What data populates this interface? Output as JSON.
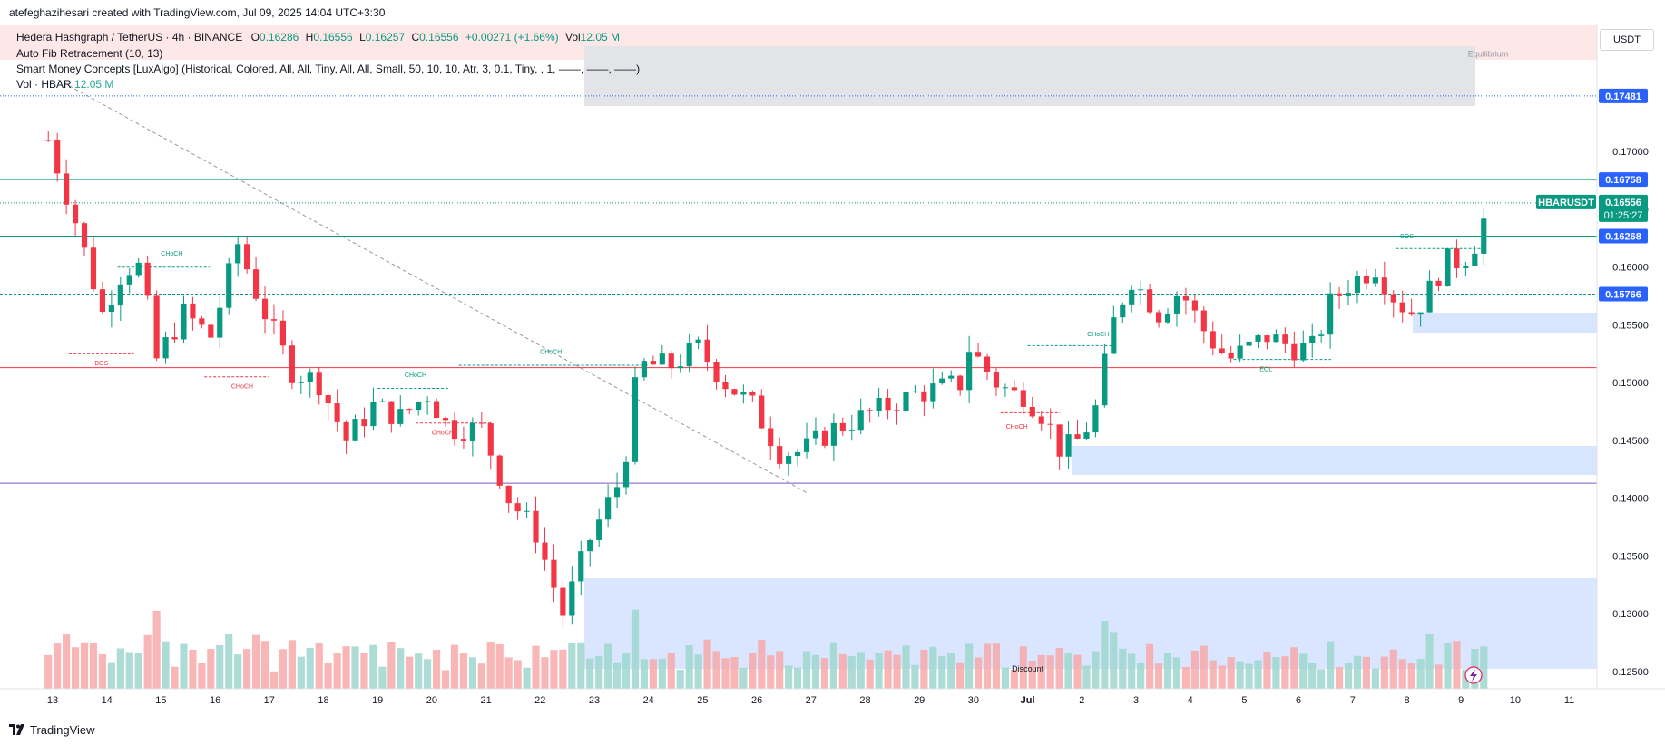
{
  "header": {
    "creator": "atefeghazihesari created with TradingView.com, Jul 09, 2025 14:04 UTC+3:30"
  },
  "legend": {
    "symbol": "Hedera Hashgraph / TetherUS · 4h · BINANCE",
    "o_label": "O",
    "o_value": "0.16286",
    "h_label": "H",
    "h_value": "0.16556",
    "l_label": "L",
    "l_value": "0.16257",
    "c_label": "C",
    "c_value": "0.16556",
    "change": "+0.00271 (+1.66%)",
    "vol_label": "Vol",
    "vol_value": "12.05 M",
    "fib": "Auto Fib Retracement (10, 13)",
    "smc": "Smart Money Concepts [LuxAlgo] (Historical, Colored, All, All, Tiny, All, All, Small, 50, 10, 10, Atr, 3, 0.1, Tiny, , 1, ——, ——, ——)",
    "vol_name": "Vol · HBAR",
    "vol_indicator_value": "12.05 M"
  },
  "currency": "USDT",
  "brand": "TradingView",
  "colors": {
    "up": "#089981",
    "down": "#f23645",
    "vol_up": "#9ed6ce",
    "vol_down": "#f7a9a9",
    "fib_green": "#089981",
    "fib_red": "#f23645",
    "demand_zone": "#d6e4ff",
    "label_blue": "#2962ff",
    "label_green": "#089981"
  },
  "chart_data": {
    "type": "candlestick",
    "symbol": "HBARUSDT",
    "interval": "4h",
    "y_range": [
      0.1235,
      0.181
    ],
    "y_ticks": [
      "0.17000",
      "0.16500",
      "0.16000",
      "0.15500",
      "0.15000",
      "0.14500",
      "0.14000",
      "0.13500",
      "0.13000",
      "0.12500"
    ],
    "x_ticks": [
      {
        "label": "13",
        "day": 0
      },
      {
        "label": "14",
        "day": 1
      },
      {
        "label": "15",
        "day": 2
      },
      {
        "label": "16",
        "day": 3
      },
      {
        "label": "17",
        "day": 4
      },
      {
        "label": "18",
        "day": 5
      },
      {
        "label": "19",
        "day": 6
      },
      {
        "label": "20",
        "day": 7
      },
      {
        "label": "21",
        "day": 8
      },
      {
        "label": "22",
        "day": 9
      },
      {
        "label": "23",
        "day": 10
      },
      {
        "label": "24",
        "day": 11
      },
      {
        "label": "25",
        "day": 12
      },
      {
        "label": "26",
        "day": 13
      },
      {
        "label": "27",
        "day": 14
      },
      {
        "label": "28",
        "day": 15
      },
      {
        "label": "29",
        "day": 16
      },
      {
        "label": "30",
        "day": 17
      },
      {
        "label": "Jul",
        "day": 18
      },
      {
        "label": "2",
        "day": 19
      },
      {
        "label": "3",
        "day": 20
      },
      {
        "label": "4",
        "day": 21
      },
      {
        "label": "5",
        "day": 22
      },
      {
        "label": "6",
        "day": 23
      },
      {
        "label": "7",
        "day": 24
      },
      {
        "label": "8",
        "day": 25
      },
      {
        "label": "9",
        "day": 26
      },
      {
        "label": "10",
        "day": 27
      },
      {
        "label": "11",
        "day": 28
      }
    ],
    "waypoints": [
      [
        0,
        0.171
      ],
      [
        0.5,
        0.164
      ],
      [
        1.0,
        0.156
      ],
      [
        1.4,
        0.16
      ],
      [
        1.7,
        0.16
      ],
      [
        2.0,
        0.152
      ],
      [
        2.5,
        0.156
      ],
      [
        3.0,
        0.154
      ],
      [
        3.5,
        0.162
      ],
      [
        3.9,
        0.157
      ],
      [
        4.5,
        0.151
      ],
      [
        5.0,
        0.15
      ],
      [
        5.5,
        0.145
      ],
      [
        6.0,
        0.148
      ],
      [
        6.5,
        0.147
      ],
      [
        7.0,
        0.149
      ],
      [
        7.4,
        0.146
      ],
      [
        8.0,
        0.146
      ],
      [
        8.5,
        0.14
      ],
      [
        9.0,
        0.137
      ],
      [
        9.5,
        0.13
      ],
      [
        10.0,
        0.1365
      ],
      [
        10.6,
        0.142
      ],
      [
        10.9,
        0.1515
      ],
      [
        11.5,
        0.1515
      ],
      [
        12.0,
        0.153
      ],
      [
        12.5,
        0.15
      ],
      [
        13.0,
        0.148
      ],
      [
        13.5,
        0.144
      ],
      [
        13.9,
        0.144
      ],
      [
        14.5,
        0.146
      ],
      [
        15.0,
        0.147
      ],
      [
        15.5,
        0.148
      ],
      [
        16.0,
        0.149
      ],
      [
        16.9,
        0.15
      ],
      [
        17.0,
        0.153
      ],
      [
        17.5,
        0.15
      ],
      [
        17.8,
        0.149
      ],
      [
        18.0,
        0.149
      ],
      [
        18.4,
        0.147
      ],
      [
        18.7,
        0.144
      ],
      [
        19.0,
        0.145
      ],
      [
        19.3,
        0.147
      ],
      [
        19.7,
        0.156
      ],
      [
        20.0,
        0.159
      ],
      [
        20.5,
        0.156
      ],
      [
        20.9,
        0.158
      ],
      [
        21.4,
        0.154
      ],
      [
        21.8,
        0.152
      ],
      [
        22.5,
        0.154
      ],
      [
        23.0,
        0.153
      ],
      [
        23.4,
        0.153
      ],
      [
        23.6,
        0.1565
      ],
      [
        24.0,
        0.1585
      ],
      [
        24.5,
        0.16
      ],
      [
        24.9,
        0.157
      ],
      [
        25.2,
        0.156
      ],
      [
        25.5,
        0.158
      ],
      [
        25.8,
        0.1605
      ],
      [
        26.1,
        0.1605
      ],
      [
        26.4,
        0.1625
      ],
      [
        26.6,
        0.1656
      ]
    ],
    "last_price": 0.16556,
    "last_price_countdown": "01:25:27",
    "price_label_symbol": "HBARUSDT",
    "fib_levels": [
      {
        "price": 0.17481,
        "label": "0.17481",
        "style": "dotted",
        "color": "#2962ff"
      },
      {
        "price": 0.16758,
        "label": "0.16758",
        "style": "solid",
        "color": "#089981"
      },
      {
        "price": 0.16268,
        "label": "0.16268",
        "style": "solid",
        "color": "#089981"
      },
      {
        "price": 0.15766,
        "label": "0.15766",
        "style": "dashed",
        "color": "#089981"
      },
      {
        "price": 0.1513,
        "label": "",
        "style": "solid",
        "color": "#f23645"
      },
      {
        "price": 0.1413,
        "label": "",
        "style": "solid",
        "color": "#7e57c2"
      }
    ],
    "annotations": [
      {
        "text": "Equilibrium",
        "day": 26.5,
        "price": 0.1782,
        "color": "#9598a1"
      },
      {
        "text": "Discount",
        "day": 18.0,
        "price": 0.125,
        "color": "#131722"
      },
      {
        "text": "CHoCH",
        "day": 2.2,
        "price": 0.161,
        "color": "#089981"
      },
      {
        "text": "BOS",
        "day": 0.9,
        "price": 0.1515,
        "color": "#f23645"
      },
      {
        "text": "CHoCH",
        "day": 3.5,
        "price": 0.1495,
        "color": "#f23645"
      },
      {
        "text": "CHoCH",
        "day": 6.7,
        "price": 0.1505,
        "color": "#089981"
      },
      {
        "text": "CHoCH",
        "day": 7.2,
        "price": 0.1455,
        "color": "#f23645"
      },
      {
        "text": "CHoCH",
        "day": 9.2,
        "price": 0.1525,
        "color": "#089981"
      },
      {
        "text": "CHoCH",
        "day": 19.3,
        "price": 0.154,
        "color": "#089981"
      },
      {
        "text": "CHoCH",
        "day": 17.8,
        "price": 0.146,
        "color": "#f23645"
      },
      {
        "text": "EQL",
        "day": 22.4,
        "price": 0.151,
        "color": "#089981"
      },
      {
        "text": "BOS",
        "day": 25.0,
        "price": 0.1625,
        "color": "#089981"
      }
    ]
  }
}
